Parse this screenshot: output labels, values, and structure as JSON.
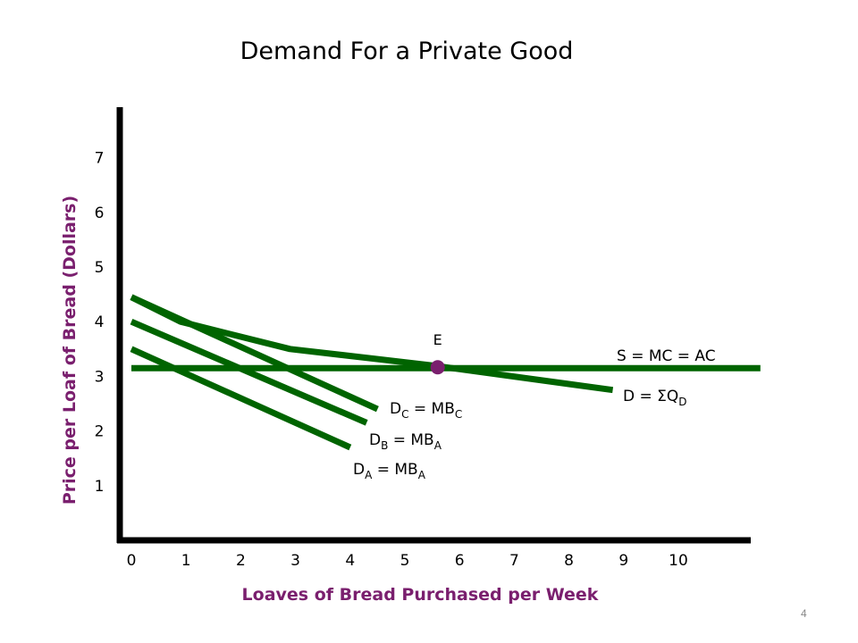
{
  "title": "Demand For a Private Good",
  "page_number": "4",
  "colors": {
    "line": "#006400",
    "marker": "#7a1f6e",
    "axis_label": "#7a1f6e"
  },
  "chart_data": {
    "type": "line",
    "title": "Demand For a Private Good",
    "xlabel": "Loaves of Bread Purchased per Week",
    "ylabel": "Price per Loaf of Bread (Dollars)",
    "xlim": [
      0,
      11
    ],
    "ylim": [
      0,
      8
    ],
    "x_ticks": [
      "0",
      "1",
      "2",
      "3",
      "4",
      "5",
      "6",
      "7",
      "8",
      "9",
      "10"
    ],
    "y_ticks": [
      "1",
      "2",
      "3",
      "4",
      "5",
      "6",
      "7"
    ],
    "grid": false,
    "series": [
      {
        "name": "D_A = MB_A",
        "label_main": "D",
        "label_sub": "A",
        "label_rest": " = MB",
        "label_sub2": "A",
        "points": [
          [
            0,
            3.5
          ],
          [
            4.0,
            1.7
          ]
        ]
      },
      {
        "name": "D_B = MB_A",
        "label_main": "D",
        "label_sub": "B",
        "label_rest": " = MB",
        "label_sub2": "A",
        "points": [
          [
            0,
            4.0
          ],
          [
            4.3,
            2.15
          ]
        ]
      },
      {
        "name": "D_C = MB_C",
        "label_main": "D",
        "label_sub": "C",
        "label_rest": " = MB",
        "label_sub2": "C",
        "points": [
          [
            0,
            4.45
          ],
          [
            4.5,
            2.4
          ]
        ]
      },
      {
        "name": "D = ΣQ_D",
        "label_main": "D = ",
        "label_sigma": "Σ",
        "label_rest": "Q",
        "label_sub2": "D",
        "points": [
          [
            0,
            4.45
          ],
          [
            0.9,
            4.0
          ],
          [
            2.9,
            3.5
          ],
          [
            5.5,
            3.2
          ],
          [
            8.8,
            2.75
          ]
        ]
      },
      {
        "name": "S = MC = AC",
        "label_main": "S = MC = AC",
        "points": [
          [
            0,
            3.15
          ],
          [
            11.5,
            3.15
          ]
        ]
      }
    ],
    "annotations": [
      {
        "label": "E",
        "x": 5.6,
        "y": 3.15
      }
    ]
  }
}
